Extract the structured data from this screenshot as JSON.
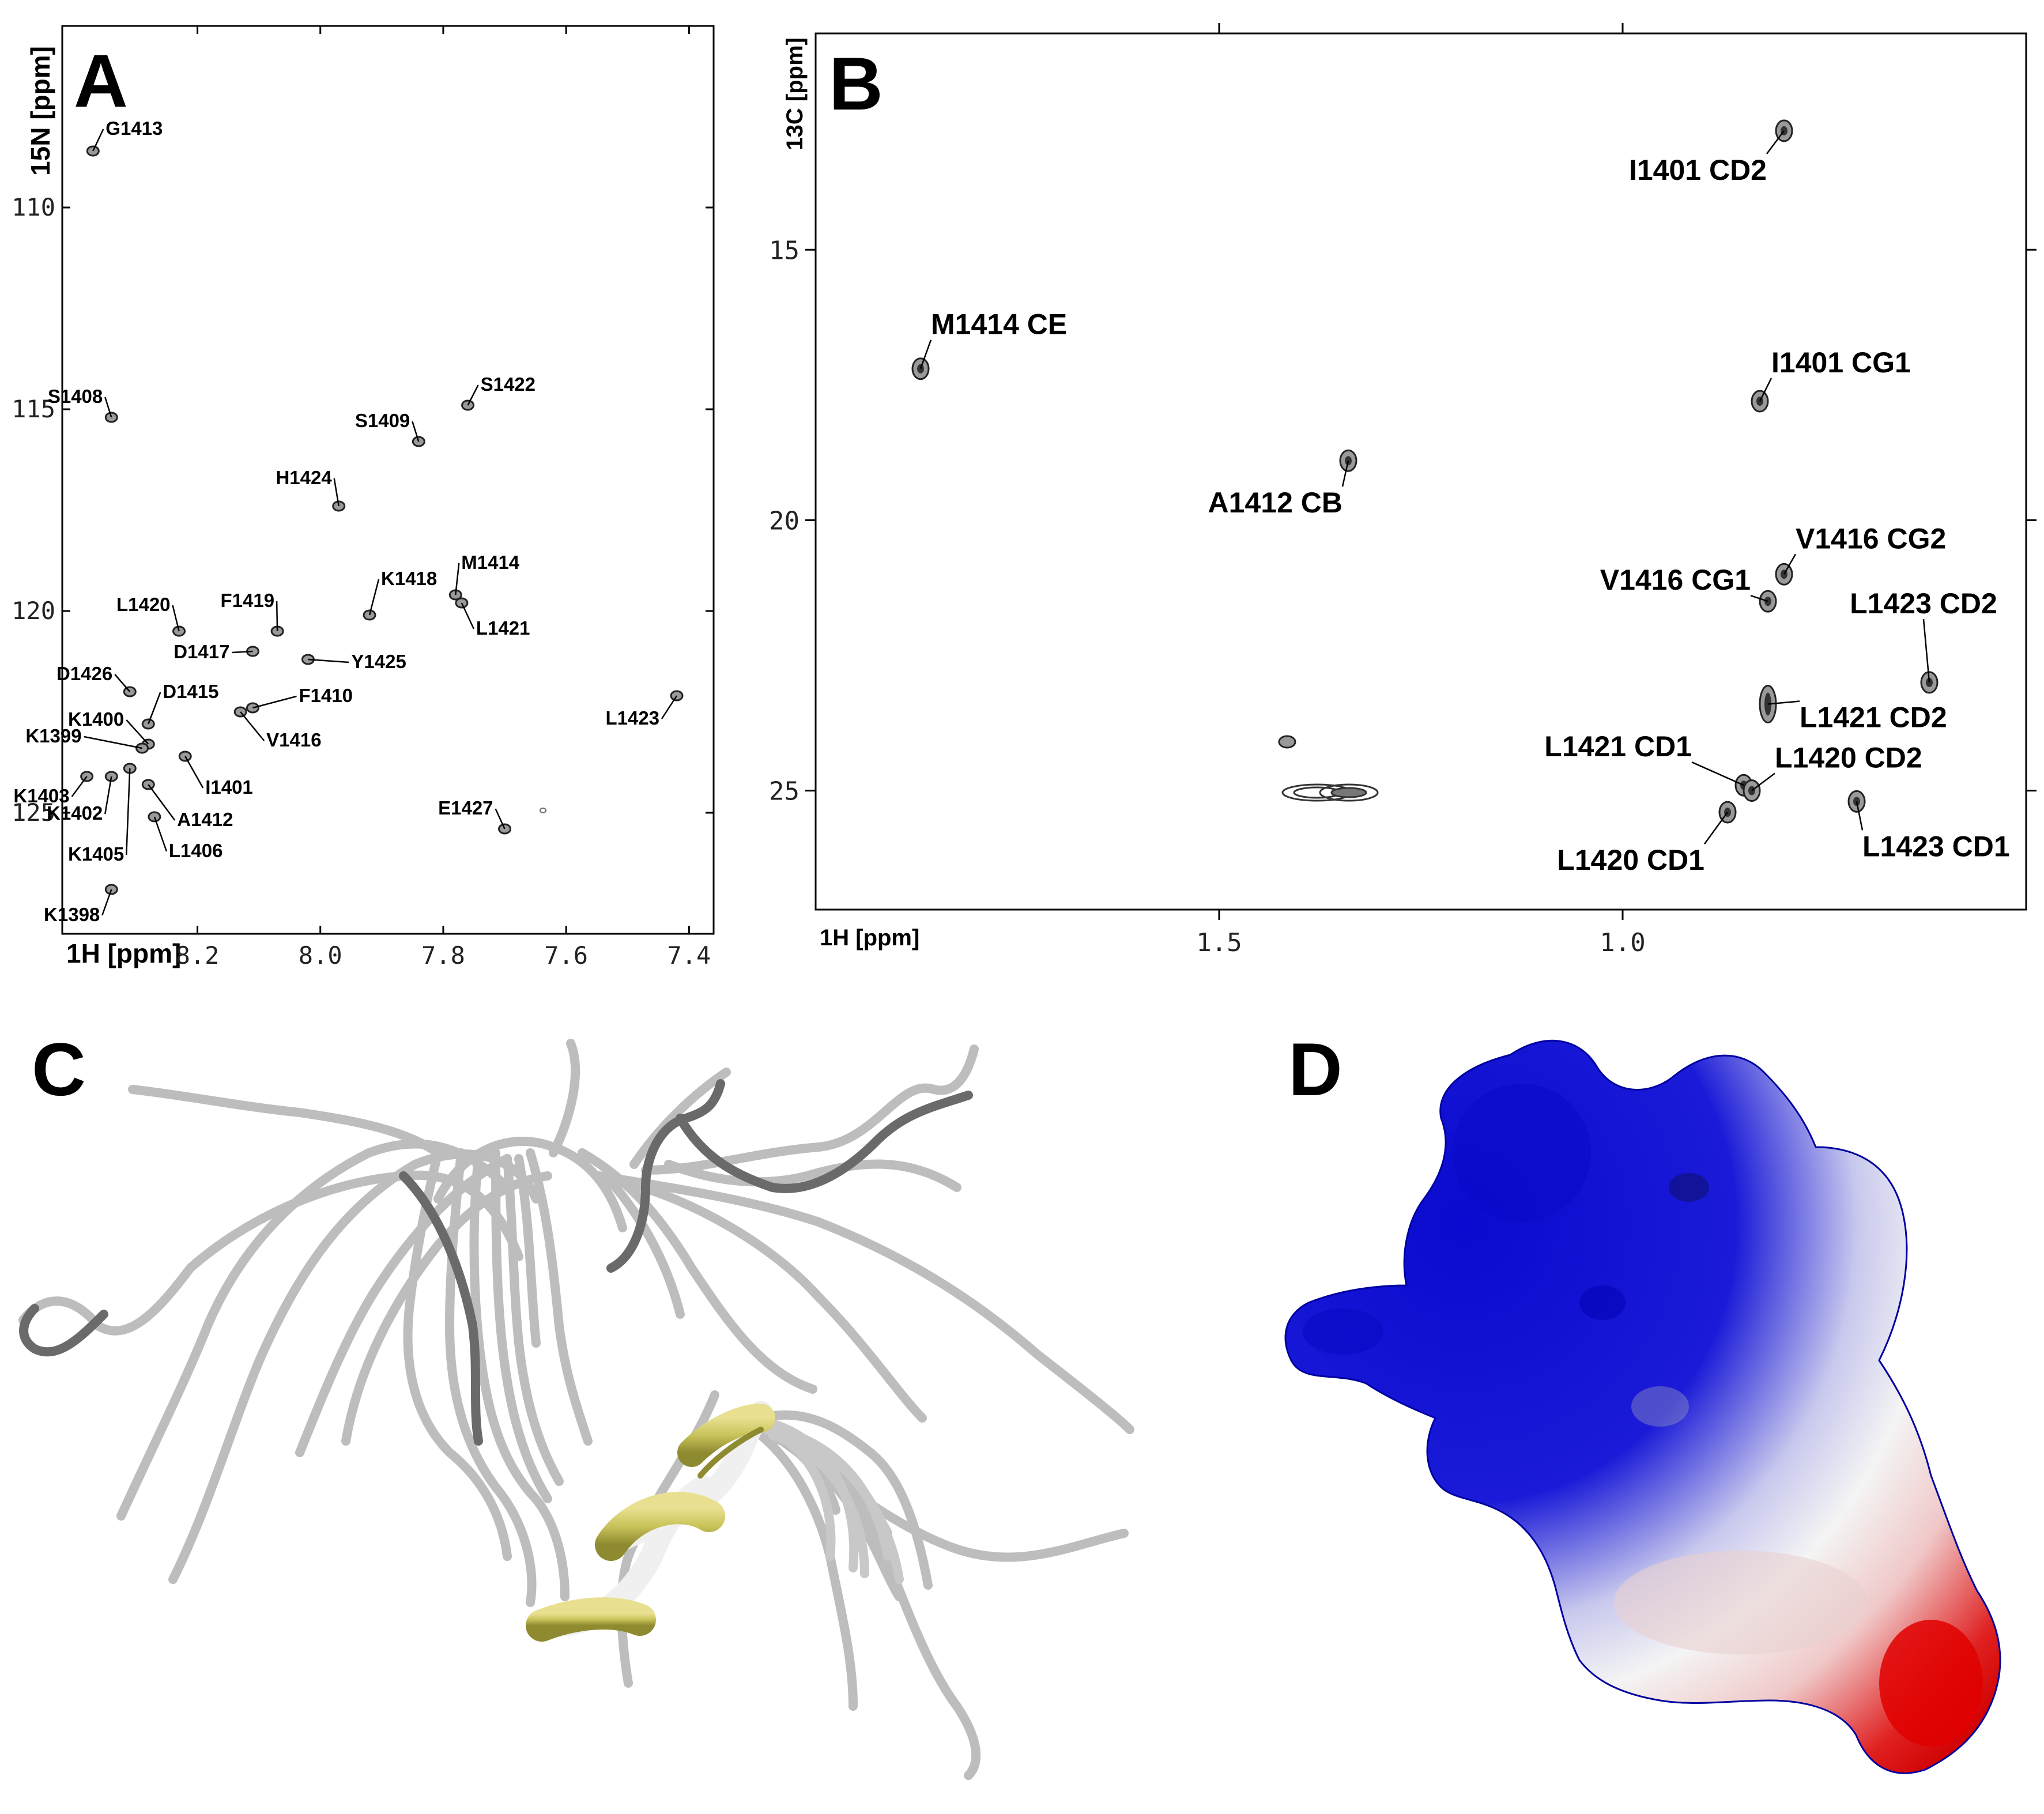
{
  "panels": {
    "a": {
      "letter": "A",
      "xlabel": "1H [ppm]",
      "ylabel": "15N [ppm]",
      "x_ticks": [
        "8.2",
        "8.0",
        "7.8",
        "7.6",
        "7.4"
      ],
      "y_ticks": [
        "110",
        "115",
        "120",
        "125"
      ],
      "xlim": [
        8.42,
        7.36
      ],
      "ylim": [
        105.5,
        128.0
      ],
      "peaks": [
        {
          "label": "G1413",
          "x": 8.37,
          "y": 108.6
        },
        {
          "label": "S1408",
          "x": 8.34,
          "y": 115.2
        },
        {
          "label": "S1409",
          "x": 7.84,
          "y": 115.8
        },
        {
          "label": "S1422",
          "x": 7.76,
          "y": 114.9
        },
        {
          "label": "H1424",
          "x": 7.97,
          "y": 117.4
        },
        {
          "label": "K1418",
          "x": 7.92,
          "y": 120.1
        },
        {
          "label": "M1414",
          "x": 7.78,
          "y": 119.6
        },
        {
          "label": "L1421",
          "x": 7.77,
          "y": 119.8
        },
        {
          "label": "F1419",
          "x": 8.07,
          "y": 120.5
        },
        {
          "label": "L1420",
          "x": 8.23,
          "y": 120.5
        },
        {
          "label": "D1417",
          "x": 8.11,
          "y": 121.0
        },
        {
          "label": "Y1425",
          "x": 8.02,
          "y": 121.2
        },
        {
          "label": "D1426",
          "x": 8.31,
          "y": 122.0
        },
        {
          "label": "D1415",
          "x": 8.28,
          "y": 122.8
        },
        {
          "label": "F1410",
          "x": 8.11,
          "y": 122.4
        },
        {
          "label": "V1416",
          "x": 8.13,
          "y": 122.5
        },
        {
          "label": "L1423",
          "x": 7.42,
          "y": 122.1
        },
        {
          "label": "K1400",
          "x": 8.28,
          "y": 123.3
        },
        {
          "label": "K1399",
          "x": 8.29,
          "y": 123.4
        },
        {
          "label": "I1401",
          "x": 8.22,
          "y": 123.6
        },
        {
          "label": "K1403",
          "x": 8.38,
          "y": 124.1
        },
        {
          "label": "K1402",
          "x": 8.34,
          "y": 124.1
        },
        {
          "label": "K1405",
          "x": 8.31,
          "y": 123.9
        },
        {
          "label": "A1412",
          "x": 8.28,
          "y": 124.3
        },
        {
          "label": "L1406",
          "x": 8.27,
          "y": 125.1
        },
        {
          "label": "E1427",
          "x": 7.7,
          "y": 125.4
        },
        {
          "label": "K1398",
          "x": 8.34,
          "y": 126.9
        }
      ]
    },
    "b": {
      "letter": "B",
      "xlabel": "1H [ppm]",
      "ylabel": "13C [ppm]",
      "x_ticks": [
        "1.5",
        "1.0"
      ],
      "y_ticks": [
        "15",
        "20",
        "25"
      ],
      "xlim": [
        2.0,
        0.5
      ],
      "ylim": [
        11.0,
        27.2
      ],
      "peaks": [
        {
          "label": "I1401 CD2",
          "x": 0.8,
          "y": 12.8
        },
        {
          "label": "M1414 CE",
          "x": 1.87,
          "y": 17.2
        },
        {
          "label": "I1401 CG1",
          "x": 0.83,
          "y": 17.8
        },
        {
          "label": "A1412 CB",
          "x": 1.34,
          "y": 18.9
        },
        {
          "label": "V1416 CG2",
          "x": 0.8,
          "y": 21.0
        },
        {
          "label": "V1416 CG1",
          "x": 0.82,
          "y": 21.5
        },
        {
          "label": "L1423 CD2",
          "x": 0.62,
          "y": 23.0
        },
        {
          "label": "L1421 CD2",
          "x": 0.82,
          "y": 23.4
        },
        {
          "label": "L1421 CD1",
          "x": 0.85,
          "y": 24.9
        },
        {
          "label": "L1420 CD2",
          "x": 0.84,
          "y": 25.0
        },
        {
          "label": "L1420 CD1",
          "x": 0.87,
          "y": 25.4
        },
        {
          "label": "L1423 CD1",
          "x": 0.71,
          "y": 25.2
        }
      ]
    },
    "c": {
      "letter": "C",
      "colors": {
        "coil": "#c8c8c8",
        "coil_dark": "#6a6a6a",
        "helix": "#c9c35a"
      }
    },
    "d": {
      "letter": "D",
      "colors": {
        "positive": "#1414d0",
        "neutral": "#f2f2f2",
        "negative": "#e01010"
      }
    }
  }
}
